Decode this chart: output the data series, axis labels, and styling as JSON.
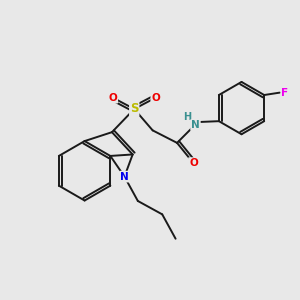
{
  "background_color": "#e8e8e8",
  "bond_color": "#1a1a1a",
  "atom_colors": {
    "N_amide": "#3a9090",
    "N_indole": "#0000ee",
    "O": "#ee0000",
    "S": "#bbbb00",
    "F": "#ee00ee",
    "H": "#3a9090",
    "C": "#1a1a1a"
  },
  "lw": 1.4
}
